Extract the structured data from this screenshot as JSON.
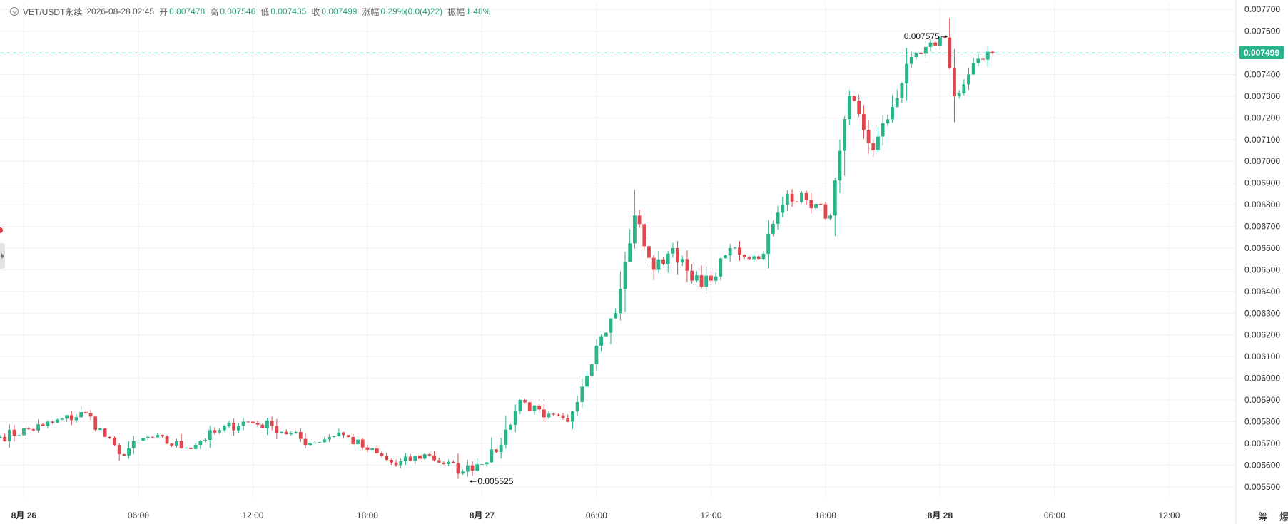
{
  "header": {
    "symbol": "VET/USDT永续",
    "datetime": "2026-08-28 02:45",
    "open_label": "开",
    "open": "0.007478",
    "high_label": "高",
    "high": "0.007546",
    "low_label": "低",
    "low": "0.007435",
    "close_label": "收",
    "close": "0.007499",
    "change_label": "涨幅",
    "change": "0.29%(0.0(4)22)",
    "amplitude_label": "振幅",
    "amplitude": "1.48%"
  },
  "current_price_badge": "0.007499",
  "bottom_right": {
    "chip_label": "筹",
    "burst_label": "爆"
  },
  "colors": {
    "up": "#2ab48c",
    "down": "#e0474c",
    "grid": "#f0f0f0",
    "price_line": "#2ab48c"
  },
  "icons": [
    "collapse-icon",
    "side-handle-icon",
    "alert-dot-icon"
  ],
  "chart_data": {
    "type": "candlestick",
    "interval": "15m",
    "ylim": [
      0.00545,
      0.00773
    ],
    "y_ticks": [
      "0.005500",
      "0.005600",
      "0.005700",
      "0.005800",
      "0.005900",
      "0.006000",
      "0.006100",
      "0.006200",
      "0.006300",
      "0.006400",
      "0.006500",
      "0.006600",
      "0.006700",
      "0.006800",
      "0.006900",
      "0.007000",
      "0.007100",
      "0.007200",
      "0.007300",
      "0.007400",
      "0.007500",
      "0.007600",
      "0.007700"
    ],
    "x_start": "2026-08-25 22:45",
    "x_end": "2026-08-28 15:30",
    "x_ticks": [
      {
        "label": "8月 26",
        "time": "2026-08-26 00:00",
        "day": true
      },
      {
        "label": "06:00",
        "time": "2026-08-26 06:00",
        "day": false
      },
      {
        "label": "12:00",
        "time": "2026-08-26 12:00",
        "day": false
      },
      {
        "label": "18:00",
        "time": "2026-08-26 18:00",
        "day": false
      },
      {
        "label": "8月 27",
        "time": "2026-08-27 00:00",
        "day": true
      },
      {
        "label": "06:00",
        "time": "2026-08-27 06:00",
        "day": false
      },
      {
        "label": "12:00",
        "time": "2026-08-27 12:00",
        "day": false
      },
      {
        "label": "18:00",
        "time": "2026-08-27 18:00",
        "day": false
      },
      {
        "label": "8月 28",
        "time": "2026-08-28 00:00",
        "day": true
      },
      {
        "label": "06:00",
        "time": "2026-08-28 06:00",
        "day": false
      },
      {
        "label": "12:00",
        "time": "2026-08-28 12:00",
        "day": false
      }
    ],
    "annotations": [
      {
        "label": "0.007575",
        "time": "2026-08-28 00:30",
        "price": 0.007575,
        "side": "left"
      },
      {
        "label": "0.005525",
        "time": "2026-08-26 23:15",
        "price": 0.005525,
        "side": "right"
      }
    ],
    "current_price": 0.007499,
    "key_closes": [
      {
        "time": "2026-08-25 22:45",
        "close": 0.00573
      },
      {
        "time": "2026-08-26 01:00",
        "close": 0.00578
      },
      {
        "time": "2026-08-26 03:15",
        "close": 0.00584
      },
      {
        "time": "2026-08-26 05:00",
        "close": 0.00565
      },
      {
        "time": "2026-08-26 06:30",
        "close": 0.00573
      },
      {
        "time": "2026-08-26 08:30",
        "close": 0.00568
      },
      {
        "time": "2026-08-26 10:00",
        "close": 0.00575
      },
      {
        "time": "2026-08-26 11:30",
        "close": 0.0058
      },
      {
        "time": "2026-08-26 13:00",
        "close": 0.00578
      },
      {
        "time": "2026-08-26 15:00",
        "close": 0.0057
      },
      {
        "time": "2026-08-26 16:30",
        "close": 0.00575
      },
      {
        "time": "2026-08-26 18:00",
        "close": 0.00567
      },
      {
        "time": "2026-08-26 19:30",
        "close": 0.0056
      },
      {
        "time": "2026-08-26 21:00",
        "close": 0.00565
      },
      {
        "time": "2026-08-26 23:00",
        "close": 0.00557
      },
      {
        "time": "2026-08-27 00:45",
        "close": 0.00566
      },
      {
        "time": "2026-08-27 02:00",
        "close": 0.0059
      },
      {
        "time": "2026-08-27 03:15",
        "close": 0.00582
      },
      {
        "time": "2026-08-27 04:30",
        "close": 0.0058
      },
      {
        "time": "2026-08-27 06:00",
        "close": 0.00615
      },
      {
        "time": "2026-08-27 07:00",
        "close": 0.0063
      },
      {
        "time": "2026-08-27 08:00",
        "close": 0.00675
      },
      {
        "time": "2026-08-27 09:00",
        "close": 0.0065
      },
      {
        "time": "2026-08-27 10:00",
        "close": 0.0066
      },
      {
        "time": "2026-08-27 11:00",
        "close": 0.00645
      },
      {
        "time": "2026-08-27 12:00",
        "close": 0.00645
      },
      {
        "time": "2026-08-27 13:00",
        "close": 0.0066
      },
      {
        "time": "2026-08-27 14:30",
        "close": 0.00655
      },
      {
        "time": "2026-08-27 16:00",
        "close": 0.00685
      },
      {
        "time": "2026-08-27 17:00",
        "close": 0.00682
      },
      {
        "time": "2026-08-27 18:15",
        "close": 0.00675
      },
      {
        "time": "2026-08-27 19:15",
        "close": 0.0073
      },
      {
        "time": "2026-08-27 20:30",
        "close": 0.00705
      },
      {
        "time": "2026-08-27 21:30",
        "close": 0.00725
      },
      {
        "time": "2026-08-27 22:30",
        "close": 0.00748
      },
      {
        "time": "2026-08-28 00:15",
        "close": 0.00757
      },
      {
        "time": "2026-08-28 00:45",
        "close": 0.0073
      },
      {
        "time": "2026-08-28 01:30",
        "close": 0.0074
      },
      {
        "time": "2026-08-28 02:45",
        "close": 0.007499
      }
    ]
  }
}
